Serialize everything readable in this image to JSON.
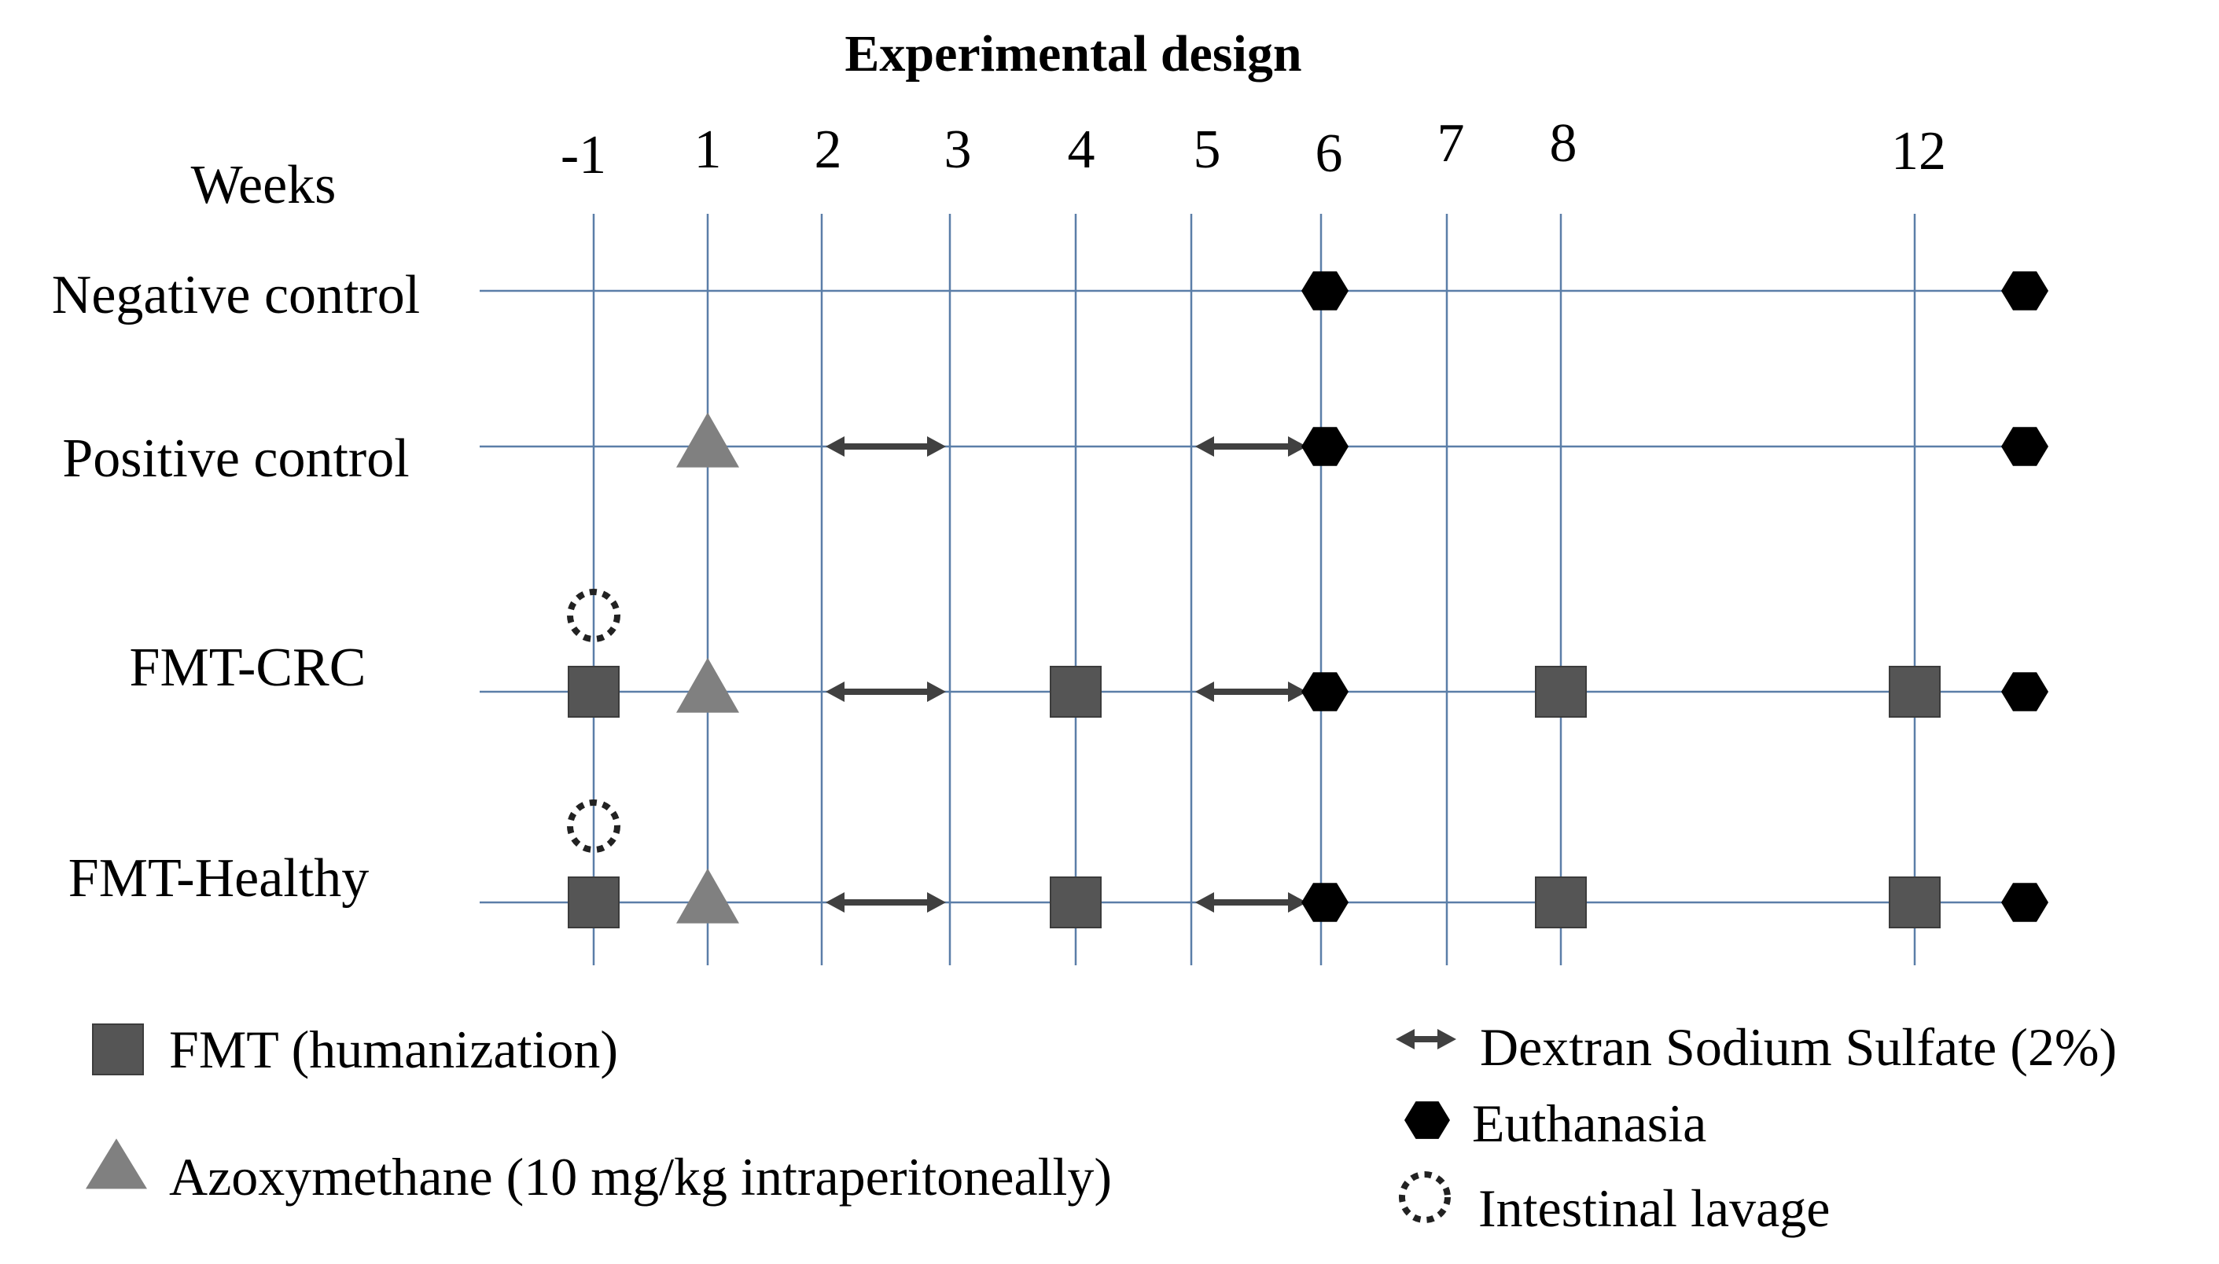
{
  "title": "Experimental design",
  "weeks_label": "Weeks",
  "weeks": [
    "-1",
    "1",
    "2",
    "3",
    "4",
    "5",
    "6",
    "7",
    "8",
    "12"
  ],
  "rows": [
    {
      "label": "Negative control"
    },
    {
      "label": "Positive control"
    },
    {
      "label": "FMT-CRC"
    },
    {
      "label": "FMT-Healthy"
    }
  ],
  "events": [
    {
      "row": 0,
      "type": "euthanasia",
      "week": "6"
    },
    {
      "row": 0,
      "type": "euthanasia",
      "week": "end"
    },
    {
      "row": 1,
      "type": "azoxymethane",
      "week": "1"
    },
    {
      "row": 1,
      "type": "dss",
      "from": "2",
      "to": "3"
    },
    {
      "row": 1,
      "type": "dss",
      "from": "5",
      "to": "6"
    },
    {
      "row": 1,
      "type": "euthanasia",
      "week": "6"
    },
    {
      "row": 1,
      "type": "euthanasia",
      "week": "end"
    },
    {
      "row": 2,
      "type": "lavage",
      "week": "-1"
    },
    {
      "row": 2,
      "type": "fmt",
      "week": "-1"
    },
    {
      "row": 2,
      "type": "azoxymethane",
      "week": "1"
    },
    {
      "row": 2,
      "type": "dss",
      "from": "2",
      "to": "3"
    },
    {
      "row": 2,
      "type": "fmt",
      "week": "4"
    },
    {
      "row": 2,
      "type": "dss",
      "from": "5",
      "to": "6"
    },
    {
      "row": 2,
      "type": "euthanasia",
      "week": "6"
    },
    {
      "row": 2,
      "type": "fmt",
      "week": "8"
    },
    {
      "row": 2,
      "type": "fmt",
      "week": "12"
    },
    {
      "row": 2,
      "type": "euthanasia",
      "week": "end"
    },
    {
      "row": 3,
      "type": "lavage",
      "week": "-1"
    },
    {
      "row": 3,
      "type": "fmt",
      "week": "-1"
    },
    {
      "row": 3,
      "type": "azoxymethane",
      "week": "1"
    },
    {
      "row": 3,
      "type": "dss",
      "from": "2",
      "to": "3"
    },
    {
      "row": 3,
      "type": "fmt",
      "week": "4"
    },
    {
      "row": 3,
      "type": "dss",
      "from": "5",
      "to": "6"
    },
    {
      "row": 3,
      "type": "euthanasia",
      "week": "6"
    },
    {
      "row": 3,
      "type": "fmt",
      "week": "8"
    },
    {
      "row": 3,
      "type": "fmt",
      "week": "12"
    },
    {
      "row": 3,
      "type": "euthanasia",
      "week": "end"
    }
  ],
  "legend": {
    "fmt": "FMT (humanization)",
    "azoxymethane": "Azoxymethane (10 mg/kg intraperitoneally)",
    "dss": "Dextran Sodium Sulfate (2%)",
    "euthanasia": "Euthanasia",
    "lavage": "Intestinal lavage"
  },
  "colors": {
    "grid": "#5b7ea8",
    "fmt": "#555555",
    "azoxymethane": "#808080",
    "dss": "#404040",
    "euthanasia": "#000000",
    "lavage": "#222222"
  }
}
